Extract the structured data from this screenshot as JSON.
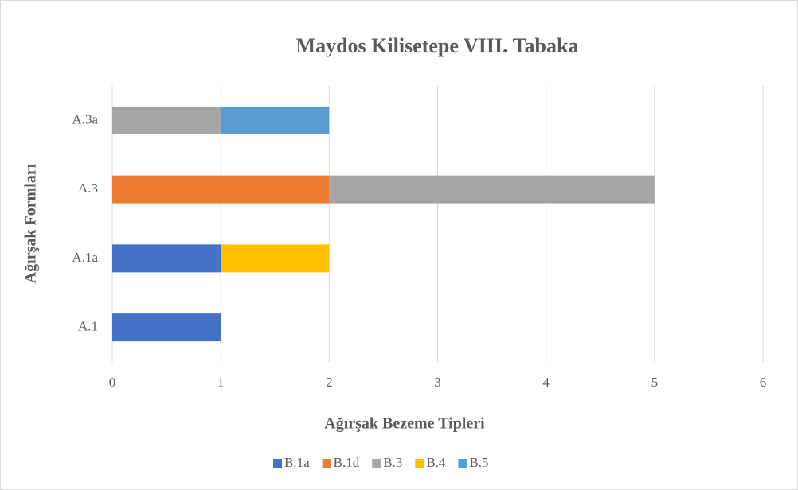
{
  "chart_data": {
    "type": "stacked-bar-horizontal",
    "title": "Maydos Kilisetepe VIII. Tabaka",
    "xlabel": "Ağırşak Bezeme Tipleri",
    "ylabel": "Ağırşak Formları",
    "categories": [
      "A.1",
      "A.1a",
      "A.3",
      "A.3a"
    ],
    "series": [
      {
        "name": "B.1a",
        "color": "#4472c4",
        "values": [
          1,
          1,
          null,
          null
        ]
      },
      {
        "name": "B.1d",
        "color": "#ed7d31",
        "values": [
          null,
          null,
          2,
          null
        ]
      },
      {
        "name": "B.3",
        "color": "#a5a5a5",
        "values": [
          null,
          null,
          3,
          1
        ]
      },
      {
        "name": "B.4",
        "color": "#ffc000",
        "values": [
          null,
          1,
          null,
          null
        ]
      },
      {
        "name": "B.5",
        "color": "#5b9bd5",
        "values": [
          null,
          null,
          null,
          1
        ]
      }
    ],
    "xlim": [
      0,
      6
    ],
    "xticks": [
      0,
      1,
      2,
      3,
      4,
      5,
      6
    ],
    "grid": true,
    "legend": "bottom"
  }
}
